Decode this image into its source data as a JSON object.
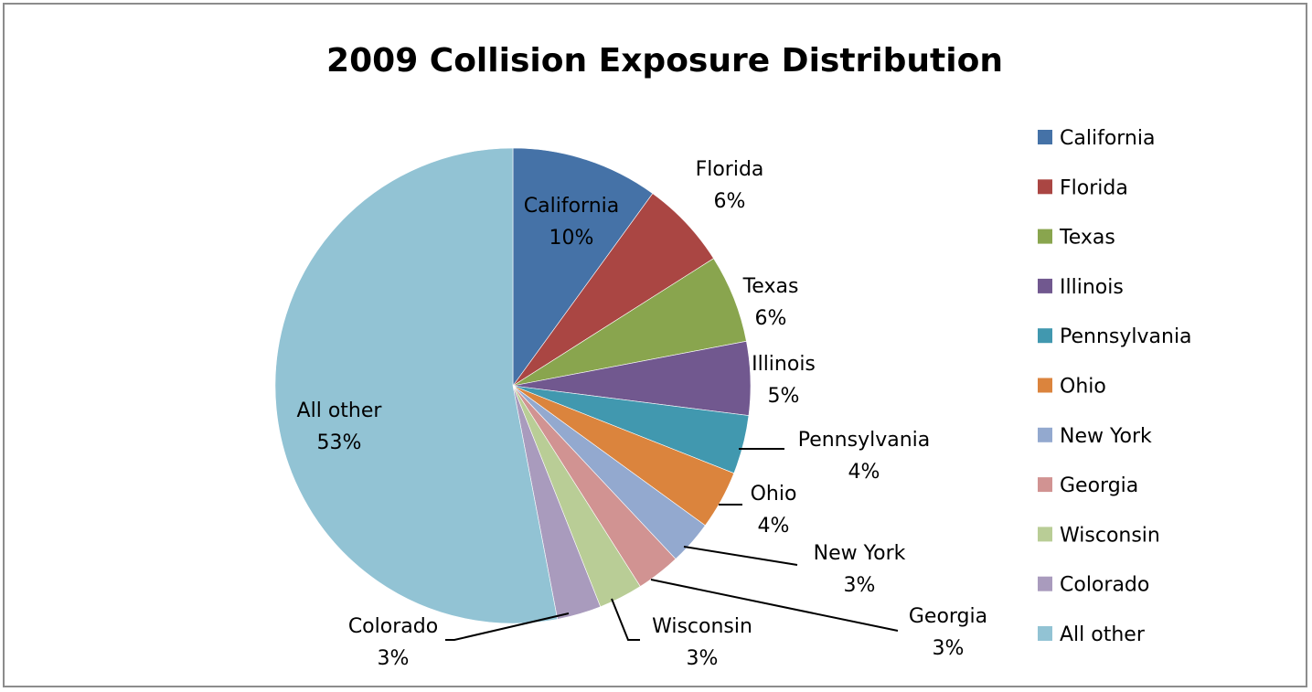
{
  "chart_data": {
    "type": "pie",
    "title": "2009 Collision Exposure Distribution",
    "slices": [
      {
        "label": "California",
        "value": 10,
        "display": "10%",
        "color": "#4572a7"
      },
      {
        "label": "Florida",
        "value": 6,
        "display": "6%",
        "color": "#aa4643"
      },
      {
        "label": "Texas",
        "value": 6,
        "display": "6%",
        "color": "#89a54e"
      },
      {
        "label": "Illinois",
        "value": 5,
        "display": "5%",
        "color": "#71588f"
      },
      {
        "label": "Pennsylvania",
        "value": 4,
        "display": "4%",
        "color": "#4198af"
      },
      {
        "label": "Ohio",
        "value": 4,
        "display": "4%",
        "color": "#db843d"
      },
      {
        "label": "New York",
        "value": 3,
        "display": "3%",
        "color": "#93a9cf"
      },
      {
        "label": "Georgia",
        "value": 3,
        "display": "3%",
        "color": "#d19392"
      },
      {
        "label": "Wisconsin",
        "value": 3,
        "display": "3%",
        "color": "#b9cd96"
      },
      {
        "label": "Colorado",
        "value": 3,
        "display": "3%",
        "color": "#a99bbd"
      },
      {
        "label": "All other",
        "value": 53,
        "display": "53%",
        "color": "#92c3d4"
      }
    ],
    "legend_position": "right"
  }
}
